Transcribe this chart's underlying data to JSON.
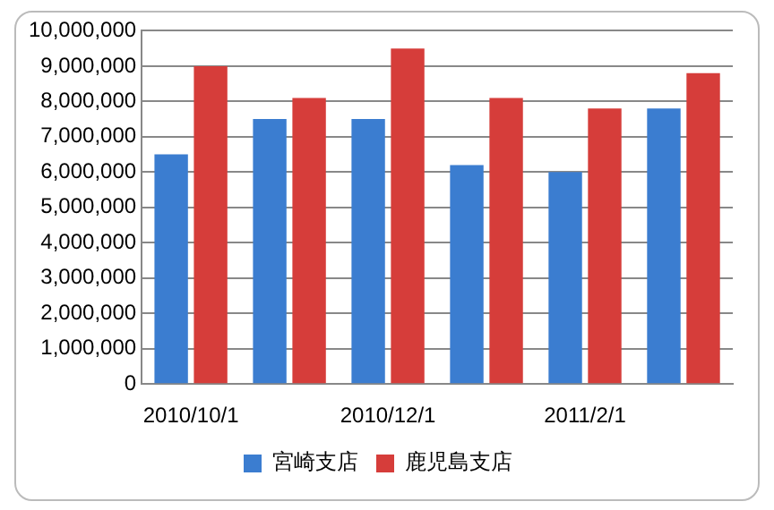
{
  "chart_data": {
    "type": "bar",
    "categories": [
      "2010/10/1",
      null,
      "2010/12/1",
      null,
      "2011/2/1",
      null
    ],
    "series": [
      {
        "name": "宮崎支店",
        "color": "#3b7dd0",
        "values": [
          6500000,
          7500000,
          7500000,
          6200000,
          6000000,
          7800000
        ]
      },
      {
        "name": "鹿児島支店",
        "color": "#d63d3a",
        "values": [
          9000000,
          8100000,
          9500000,
          8100000,
          7800000,
          8800000
        ]
      }
    ],
    "ylim": [
      0,
      10000000
    ],
    "yticks": [
      0,
      {
        "value": 1000000,
        "label": "1,000,000"
      },
      {
        "value": 2000000,
        "label": "2,000,000"
      },
      {
        "value": 3000000,
        "label": "3,000,000"
      },
      {
        "value": 4000000,
        "label": "4,000,000"
      },
      {
        "value": 5000000,
        "label": "5,000,000"
      },
      {
        "value": 6000000,
        "label": "6,000,000"
      },
      {
        "value": 7000000,
        "label": "7,000,000"
      },
      {
        "value": 8000000,
        "label": "8,000,000"
      },
      {
        "value": 9000000,
        "label": "9,000,000"
      },
      {
        "value": 10000000,
        "label": "10,000,000"
      }
    ],
    "grid": "y",
    "legend": "bottom"
  }
}
